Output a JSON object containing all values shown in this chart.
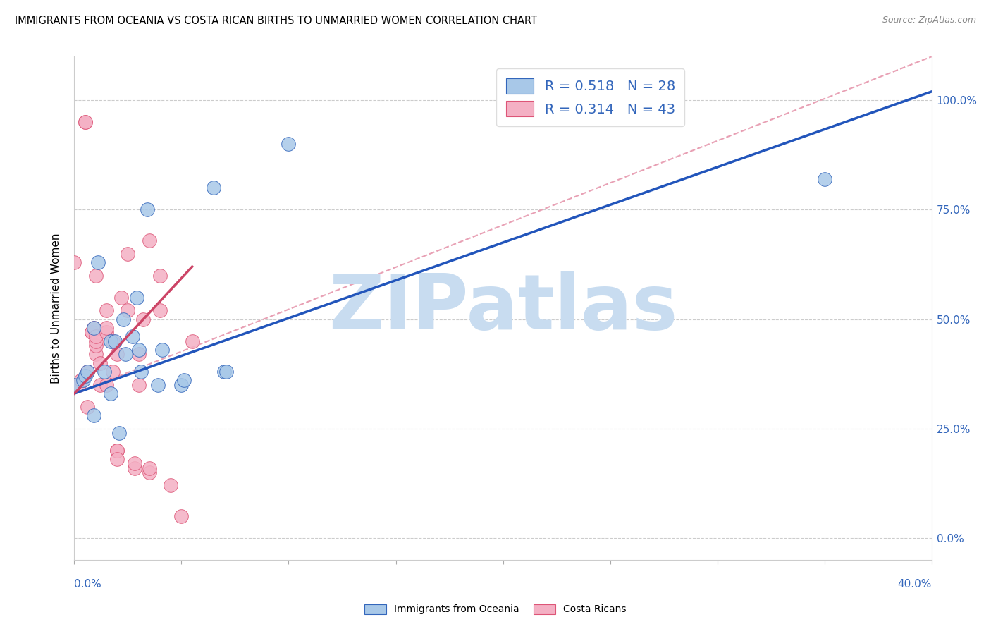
{
  "title": "IMMIGRANTS FROM OCEANIA VS COSTA RICAN BIRTHS TO UNMARRIED WOMEN CORRELATION CHART",
  "source": "Source: ZipAtlas.com",
  "ylabel": "Births to Unmarried Women",
  "yticks_right_vals": [
    0,
    25,
    50,
    75,
    100
  ],
  "legend_blue_r": "0.518",
  "legend_blue_n": "28",
  "legend_pink_r": "0.314",
  "legend_pink_n": "43",
  "blue_color": "#A8C8E8",
  "pink_color": "#F4B0C4",
  "blue_edge_color": "#3366BB",
  "pink_edge_color": "#DD5577",
  "blue_line_color": "#2255BB",
  "pink_line_color": "#CC4466",
  "pink_dash_color": "#E8A0B4",
  "watermark_color": "#C8DCF0",
  "legend_label_color": "#3366BB",
  "blue_scatter_x": [
    0.0,
    0.4,
    0.5,
    0.6,
    0.9,
    0.9,
    1.1,
    1.4,
    1.7,
    1.7,
    1.9,
    2.1,
    2.3,
    2.4,
    2.7,
    2.9,
    3.0,
    3.1,
    3.4,
    3.9,
    4.1,
    5.0,
    5.1,
    6.5,
    7.0,
    7.1,
    10.0,
    35.0
  ],
  "blue_scatter_y": [
    35,
    36,
    37,
    38,
    28,
    48,
    63,
    38,
    45,
    33,
    45,
    24,
    50,
    42,
    46,
    55,
    43,
    38,
    75,
    35,
    43,
    35,
    36,
    80,
    38,
    38,
    90,
    82
  ],
  "pink_scatter_x": [
    0.0,
    0.2,
    0.3,
    0.5,
    0.5,
    0.6,
    0.6,
    0.8,
    0.8,
    0.9,
    1.0,
    1.0,
    1.0,
    1.0,
    1.0,
    1.2,
    1.2,
    1.5,
    1.5,
    1.5,
    1.5,
    1.8,
    1.8,
    2.0,
    2.0,
    2.0,
    2.0,
    2.2,
    2.5,
    2.5,
    2.8,
    2.8,
    3.0,
    3.0,
    3.2,
    3.5,
    3.5,
    3.5,
    4.0,
    4.0,
    4.5,
    5.0,
    5.5
  ],
  "pink_scatter_y": [
    63,
    35,
    36,
    95,
    95,
    30,
    38,
    47,
    47,
    48,
    42,
    44,
    45,
    46,
    60,
    35,
    40,
    47,
    52,
    48,
    35,
    45,
    38,
    42,
    20,
    20,
    18,
    55,
    52,
    65,
    16,
    17,
    42,
    35,
    50,
    15,
    16,
    68,
    52,
    60,
    12,
    5,
    45
  ],
  "xlim": [
    0,
    40
  ],
  "ylim": [
    -5,
    110
  ],
  "ytick_vals_display": [
    0,
    25,
    50,
    75,
    100
  ],
  "blue_line_x": [
    0,
    40
  ],
  "blue_line_y": [
    33,
    102
  ],
  "pink_solid_line_x": [
    0,
    5.5
  ],
  "pink_solid_line_y": [
    33,
    62
  ],
  "pink_dash_line_x": [
    0,
    40
  ],
  "pink_dash_line_y": [
    33,
    110
  ]
}
